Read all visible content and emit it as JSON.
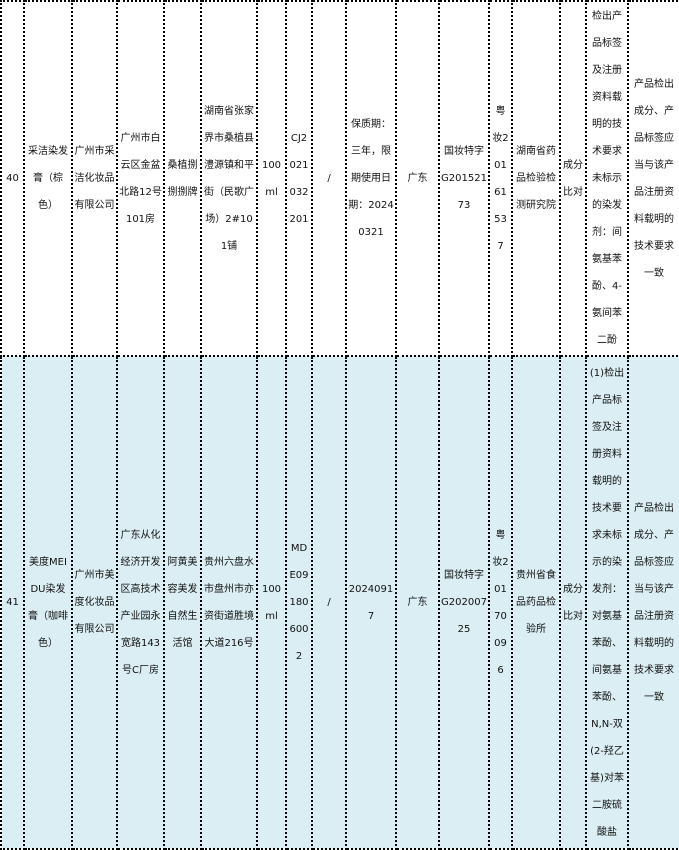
{
  "colors": {
    "row_even": "#ffffff",
    "row_odd": "#daeef3",
    "border": "#000000"
  },
  "rows": [
    {
      "no": "40",
      "product": "采洁染发膏（棕色）",
      "maker": "广州市采洁化妆品有限公司",
      "maker_address": "广州市白云区金盆北路12号101房",
      "seller": "桑植捌捌捌牌",
      "seller_address": "湖南省张家界市桑植县澧源镇和平街（民歌广场）2#101铺",
      "spec": "100ml",
      "batch": "CJ2021032201",
      "trademark": "/",
      "date": "保质期：三年，限期使用日期：20240321",
      "origin": "广东",
      "license": "国妆特字G20152173",
      "permit": "粤妆20161537",
      "lab": "湖南省药品检验检测研究院",
      "item": "成分比对",
      "result": "检出产品标签及注册资料载明的技术要求未标示的染发剂：间氨基苯酚、4-氨间苯二酚",
      "requirement": "产品检出成分、产品标签应当与该产品注册资料载明的技术要求一致"
    },
    {
      "no": "41",
      "product": "美度MEIDU染发膏（咖啡色）",
      "maker": "广州市美度化妆品有限公司",
      "maker_address": "广东从化经济开发区高技术产业园永宽路143号C厂房",
      "seller": "阿黄美容美发自然生活馆",
      "seller_address": "贵州六盘水市盘州市亦资街道胜境大道216号",
      "spec": "100ml",
      "batch": "MDE091806002",
      "trademark": "/",
      "date": "20240917",
      "origin": "广东",
      "license": "国妆特字G20200725",
      "permit": "粤妆20170096",
      "lab": "贵州省食品药品检验所",
      "item": "成分比对",
      "result": "(1)检出产品标签及注册资料载明的技术要求未标示的染发剂：对氨基苯酚、间氨基苯酚、N,N-双(2-羟乙基)对苯二胺硫酸盐",
      "requirement": "产品检出成分、产品标签应当与该产品注册资料载明的技术要求一致"
    }
  ]
}
